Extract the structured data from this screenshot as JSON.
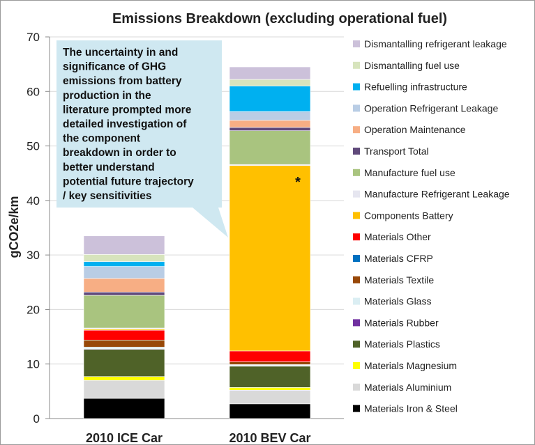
{
  "chart_data": {
    "type": "bar",
    "stacked": true,
    "title": "Emissions Breakdown (excluding operational fuel)",
    "ylabel": "gCO2e/km",
    "xlabel": "",
    "ylim": [
      0,
      70
    ],
    "yticks": [
      0,
      10,
      20,
      30,
      40,
      50,
      60,
      70
    ],
    "grid": true,
    "legend_position": "right",
    "categories": [
      "2010 ICE Car",
      "2010 BEV Car"
    ],
    "series": [
      {
        "name": "Materials Iron & Steel",
        "color": "#000000",
        "values": [
          3.7,
          2.7
        ]
      },
      {
        "name": "Materials Aluminium",
        "color": "#d9d9d9",
        "values": [
          3.3,
          2.5
        ]
      },
      {
        "name": "Materials Magnesium",
        "color": "#ffff00",
        "values": [
          0.7,
          0.5
        ]
      },
      {
        "name": "Materials Plastics",
        "color": "#4f6228",
        "values": [
          5.0,
          3.9
        ]
      },
      {
        "name": "Materials Rubber",
        "color": "#7030a0",
        "values": [
          0.1,
          0.1
        ]
      },
      {
        "name": "Materials Glass",
        "color": "#dbeef3",
        "values": [
          0.3,
          0.2
        ]
      },
      {
        "name": "Materials Textile",
        "color": "#984807",
        "values": [
          1.3,
          0.5
        ]
      },
      {
        "name": "Materials CFRP",
        "color": "#0070c0",
        "values": [
          0.0,
          0.0
        ]
      },
      {
        "name": "Materials Other",
        "color": "#ff0000",
        "values": [
          1.8,
          2.0
        ]
      },
      {
        "name": "Components Battery",
        "color": "#ffc000",
        "values": [
          0.2,
          34.0
        ]
      },
      {
        "name": "Manufacture Refrigerant Leakage",
        "color": "#e6e6f0",
        "values": [
          0.2,
          0.2
        ]
      },
      {
        "name": "Manufacture fuel use",
        "color": "#a9c47f",
        "values": [
          6.0,
          6.2
        ]
      },
      {
        "name": "Transport Total",
        "color": "#604a7b",
        "values": [
          0.6,
          0.6
        ]
      },
      {
        "name": "Operation Maintenance",
        "color": "#f7ae84",
        "values": [
          2.5,
          1.3
        ]
      },
      {
        "name": "Operation Refrigerant Leakage",
        "color": "#b9cde5",
        "values": [
          2.2,
          1.6
        ]
      },
      {
        "name": "Refuelling infrastructure",
        "color": "#00b0f0",
        "values": [
          0.9,
          4.7
        ]
      },
      {
        "name": "Dismantalling fuel use",
        "color": "#d7e4bd",
        "values": [
          1.3,
          1.2
        ]
      },
      {
        "name": "Dismantalling refrigerant leakage",
        "color": "#ccc1da",
        "values": [
          3.4,
          2.3
        ]
      }
    ],
    "annotations": [
      {
        "category": "2010 BEV Car",
        "text": "*"
      }
    ]
  },
  "callout": {
    "text": "The uncertainty in and significance of GHG emissions from battery production in the literature prompted more detailed investigation of the component breakdown in order to better understand potential future trajectory / key sensitivities",
    "lines": [
      "The uncertainty in and",
      "significance of GHG",
      "emissions from battery",
      "production in the",
      "literature prompted more",
      "detailed investigation of",
      "the component",
      "breakdown in order to",
      "better understand",
      "potential future trajectory",
      "/ key sensitivities"
    ],
    "fill": "#cfe8f1"
  }
}
